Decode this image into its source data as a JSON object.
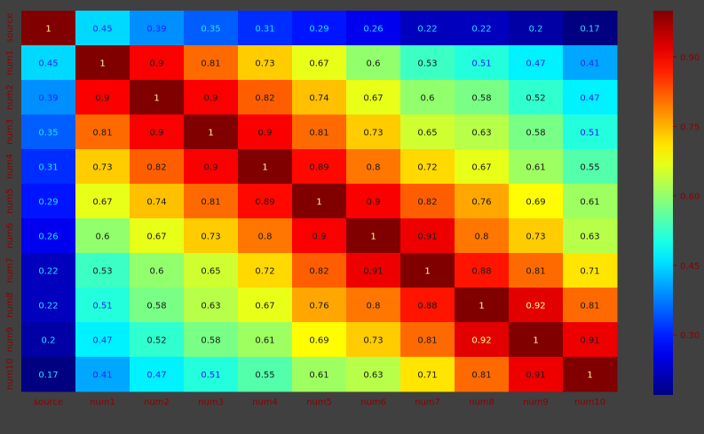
{
  "chart_data": {
    "type": "heatmap",
    "title": "",
    "xlabel": "",
    "ylabel": "",
    "x_categories": [
      "source",
      "num1",
      "num2",
      "num3",
      "num4",
      "num5",
      "num6",
      "num7",
      "num8",
      "num9",
      "num10"
    ],
    "y_categories": [
      "source",
      "num1",
      "num2",
      "num3",
      "num4",
      "num5",
      "num6",
      "num7",
      "num8",
      "num9",
      "num10"
    ],
    "values": [
      [
        "1",
        "0.45",
        "0.39",
        "0.35",
        "0.31",
        "0.29",
        "0.26",
        "0.22",
        "0.22",
        "0.2",
        "0.17"
      ],
      [
        "0.45",
        "1",
        "0.9",
        "0.81",
        "0.73",
        "0.67",
        "0.6",
        "0.53",
        "0.51",
        "0.47",
        "0.41"
      ],
      [
        "0.39",
        "0.9",
        "1",
        "0.9",
        "0.82",
        "0.74",
        "0.67",
        "0.6",
        "0.58",
        "0.52",
        "0.47"
      ],
      [
        "0.35",
        "0.81",
        "0.9",
        "1",
        "0.9",
        "0.81",
        "0.73",
        "0.65",
        "0.63",
        "0.58",
        "0.51"
      ],
      [
        "0.31",
        "0.73",
        "0.82",
        "0.9",
        "1",
        "0.89",
        "0.8",
        "0.72",
        "0.67",
        "0.61",
        "0.55"
      ],
      [
        "0.29",
        "0.67",
        "0.74",
        "0.81",
        "0.89",
        "1",
        "0.9",
        "0.82",
        "0.76",
        "0.69",
        "0.61"
      ],
      [
        "0.26",
        "0.6",
        "0.67",
        "0.73",
        "0.8",
        "0.9",
        "1",
        "0.91",
        "0.8",
        "0.73",
        "0.63"
      ],
      [
        "0.22",
        "0.53",
        "0.6",
        "0.65",
        "0.72",
        "0.82",
        "0.91",
        "1",
        "0.88",
        "0.81",
        "0.71"
      ],
      [
        "0.22",
        "0.51",
        "0.58",
        "0.63",
        "0.67",
        "0.76",
        "0.8",
        "0.88",
        "1",
        "0.92",
        "0.81"
      ],
      [
        "0.2",
        "0.47",
        "0.52",
        "0.58",
        "0.61",
        "0.69",
        "0.73",
        "0.81",
        "0.92",
        "1",
        "0.91"
      ],
      [
        "0.17",
        "0.41",
        "0.47",
        "0.51",
        "0.55",
        "0.61",
        "0.63",
        "0.71",
        "0.81",
        "0.91",
        "1"
      ]
    ],
    "colormap": "jet",
    "color_range": [
      0.17,
      1.0
    ],
    "colorbar_ticks": [
      "0.30",
      "0.45",
      "0.60",
      "0.75",
      "0.90"
    ],
    "colors": {
      "background": "#404040",
      "tick_label": "#8b0000",
      "colorbar_tick": "#8b0000"
    }
  }
}
